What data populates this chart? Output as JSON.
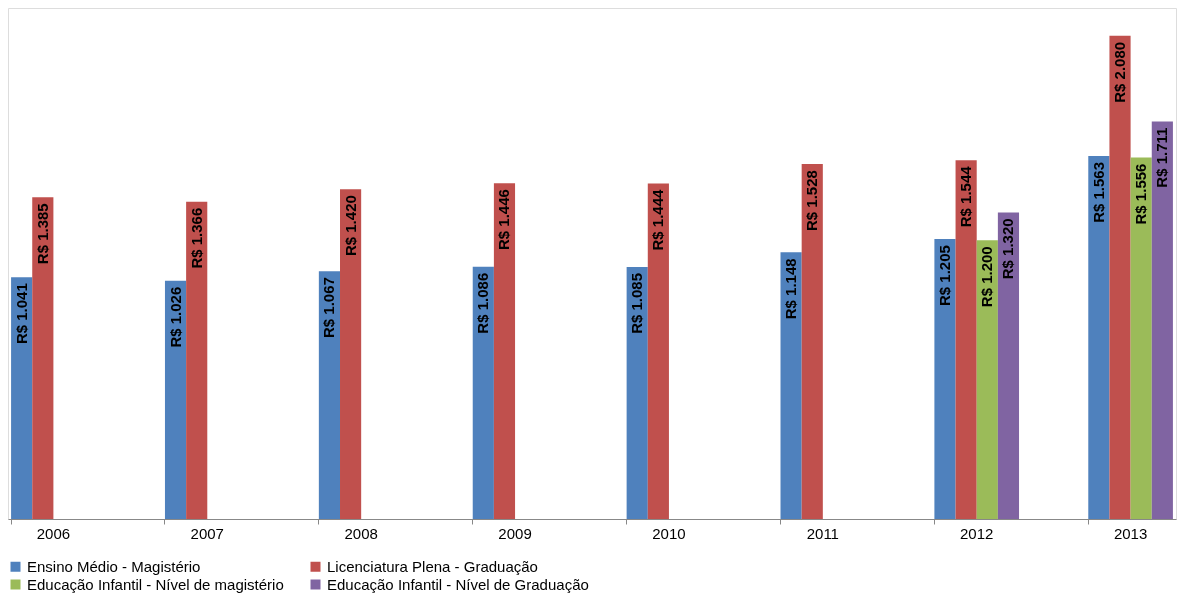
{
  "chart_data": {
    "type": "bar",
    "categories": [
      "2006",
      "2007",
      "2008",
      "2009",
      "2010",
      "2011",
      "2012",
      "2013"
    ],
    "series": [
      {
        "name": "Ensino Médio - Magistério",
        "color": "#4f81bd",
        "values": [
          1041,
          1026,
          1067,
          1086,
          1085,
          1148,
          1205,
          1563
        ],
        "value_labels": [
          "R$ 1.041",
          "R$ 1.026",
          "R$ 1.067",
          "R$ 1.086",
          "R$ 1.085",
          "R$ 1.148",
          "R$ 1.205",
          "R$ 1.563"
        ]
      },
      {
        "name": "Licenciatura Plena - Graduação",
        "color": "#c0504d",
        "values": [
          1385,
          1366,
          1420,
          1446,
          1444,
          1528,
          1544,
          2080
        ],
        "value_labels": [
          "R$ 1.385",
          "R$ 1.366",
          "R$ 1.420",
          "R$ 1.446",
          "R$ 1.444",
          "R$ 1.528",
          "R$ 1.544",
          "R$ 2.080"
        ]
      },
      {
        "name": "Educação Infantil - Nível de  magistério",
        "color": "#9bbb59",
        "values": [
          null,
          null,
          null,
          null,
          null,
          null,
          1200,
          1556
        ],
        "value_labels": [
          null,
          null,
          null,
          null,
          null,
          null,
          "R$ 1.200",
          "R$ 1.556"
        ]
      },
      {
        "name": "Educação Infantil - Nível de Graduação",
        "color": "#8064a2",
        "values": [
          null,
          null,
          null,
          null,
          null,
          null,
          1320,
          1711
        ],
        "value_labels": [
          null,
          null,
          null,
          null,
          null,
          null,
          "R$ 1.320",
          "R$ 1.711"
        ]
      }
    ],
    "legend": "bottom",
    "tick_labels": "x"
  }
}
